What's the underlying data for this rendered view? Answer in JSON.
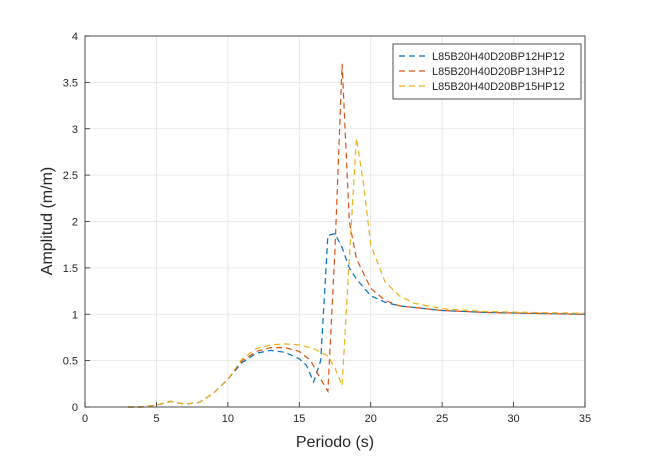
{
  "chart_data": {
    "type": "line",
    "title": "",
    "xlabel": "Periodo (s)",
    "ylabel": "Amplitud (m/m)",
    "xlim": [
      0,
      35
    ],
    "ylim": [
      0,
      4
    ],
    "xticks": [
      0,
      5,
      10,
      15,
      20,
      25,
      30,
      35
    ],
    "yticks": [
      0,
      0.5,
      1,
      1.5,
      2,
      2.5,
      3,
      3.5,
      4
    ],
    "xtick_labels": [
      "0",
      "5",
      "10",
      "15",
      "20",
      "25",
      "30",
      "35"
    ],
    "ytick_labels": [
      "0",
      "0.5",
      "1",
      "1.5",
      "2",
      "2.5",
      "3",
      "3.5",
      "4"
    ],
    "grid": true,
    "legend_position": "top-right",
    "line_style": "dashed",
    "series": [
      {
        "name": "L85B20H40D20BP12HP12",
        "color": "#0072BD",
        "points": [
          [
            3,
            0
          ],
          [
            4,
            0
          ],
          [
            5,
            0.02
          ],
          [
            6,
            0.06
          ],
          [
            7,
            0.03
          ],
          [
            8,
            0.05
          ],
          [
            9,
            0.15
          ],
          [
            10,
            0.3
          ],
          [
            11,
            0.48
          ],
          [
            12,
            0.58
          ],
          [
            13,
            0.61
          ],
          [
            14,
            0.59
          ],
          [
            15,
            0.52
          ],
          [
            15.5,
            0.45
          ],
          [
            16,
            0.27
          ],
          [
            16.5,
            0.5
          ],
          [
            17,
            1.85
          ],
          [
            17.5,
            1.87
          ],
          [
            18,
            1.72
          ],
          [
            18.5,
            1.5
          ],
          [
            19,
            1.38
          ],
          [
            20,
            1.2
          ],
          [
            21,
            1.13
          ],
          [
            22,
            1.09
          ],
          [
            25,
            1.04
          ],
          [
            28,
            1.02
          ],
          [
            31,
            1.01
          ],
          [
            35,
            1.0
          ]
        ]
      },
      {
        "name": "L85B20H40D20BP13HP12",
        "color": "#D95319",
        "points": [
          [
            3,
            0
          ],
          [
            4,
            0
          ],
          [
            5,
            0.02
          ],
          [
            6,
            0.06
          ],
          [
            7,
            0.03
          ],
          [
            8,
            0.05
          ],
          [
            9,
            0.15
          ],
          [
            10,
            0.3
          ],
          [
            11,
            0.5
          ],
          [
            12,
            0.6
          ],
          [
            13,
            0.64
          ],
          [
            14,
            0.64
          ],
          [
            15,
            0.6
          ],
          [
            15.8,
            0.5
          ],
          [
            16.5,
            0.3
          ],
          [
            17,
            0.17
          ],
          [
            17.5,
            1.7
          ],
          [
            18,
            3.7
          ],
          [
            18.5,
            2.0
          ],
          [
            19,
            1.6
          ],
          [
            20,
            1.28
          ],
          [
            21,
            1.15
          ],
          [
            22,
            1.09
          ],
          [
            25,
            1.04
          ],
          [
            28,
            1.02
          ],
          [
            31,
            1.01
          ],
          [
            35,
            1.0
          ]
        ]
      },
      {
        "name": "L85B20H40D20BP15HP12",
        "color": "#EDB120",
        "points": [
          [
            3,
            0
          ],
          [
            4,
            0
          ],
          [
            5,
            0.02
          ],
          [
            6,
            0.06
          ],
          [
            7,
            0.03
          ],
          [
            8,
            0.05
          ],
          [
            9,
            0.15
          ],
          [
            10,
            0.3
          ],
          [
            11,
            0.52
          ],
          [
            12,
            0.63
          ],
          [
            13,
            0.67
          ],
          [
            14,
            0.68
          ],
          [
            15,
            0.67
          ],
          [
            16,
            0.63
          ],
          [
            17,
            0.55
          ],
          [
            17.5,
            0.42
          ],
          [
            18,
            0.23
          ],
          [
            18.5,
            1.6
          ],
          [
            19,
            2.9
          ],
          [
            19.5,
            2.4
          ],
          [
            20,
            1.75
          ],
          [
            21,
            1.35
          ],
          [
            22,
            1.2
          ],
          [
            23,
            1.12
          ],
          [
            25,
            1.06
          ],
          [
            28,
            1.03
          ],
          [
            31,
            1.02
          ],
          [
            35,
            1.01
          ]
        ]
      }
    ]
  }
}
